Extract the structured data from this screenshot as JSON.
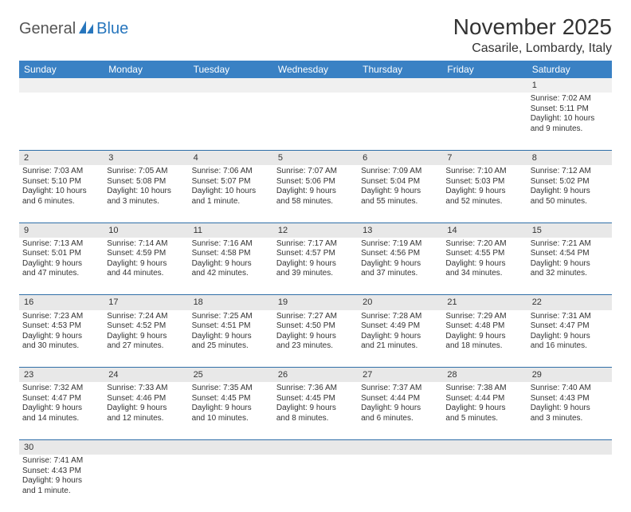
{
  "logo": {
    "text_dark": "General",
    "text_blue": "Blue"
  },
  "title": "November 2025",
  "location": "Casarile, Lombardy, Italy",
  "day_headers": [
    "Sunday",
    "Monday",
    "Tuesday",
    "Wednesday",
    "Thursday",
    "Friday",
    "Saturday"
  ],
  "colors": {
    "header_bg": "#3a81c4",
    "header_text": "#ffffff",
    "daynum_bg": "#e8e8e8",
    "cell_border": "#2f6fa8",
    "logo_blue": "#2776bd"
  },
  "weeks": [
    {
      "nums": [
        "",
        "",
        "",
        "",
        "",
        "",
        "1"
      ],
      "cells": [
        null,
        null,
        null,
        null,
        null,
        null,
        {
          "sr": "Sunrise: 7:02 AM",
          "ss": "Sunset: 5:11 PM",
          "d1": "Daylight: 10 hours",
          "d2": "and 9 minutes."
        }
      ]
    },
    {
      "nums": [
        "2",
        "3",
        "4",
        "5",
        "6",
        "7",
        "8"
      ],
      "cells": [
        {
          "sr": "Sunrise: 7:03 AM",
          "ss": "Sunset: 5:10 PM",
          "d1": "Daylight: 10 hours",
          "d2": "and 6 minutes."
        },
        {
          "sr": "Sunrise: 7:05 AM",
          "ss": "Sunset: 5:08 PM",
          "d1": "Daylight: 10 hours",
          "d2": "and 3 minutes."
        },
        {
          "sr": "Sunrise: 7:06 AM",
          "ss": "Sunset: 5:07 PM",
          "d1": "Daylight: 10 hours",
          "d2": "and 1 minute."
        },
        {
          "sr": "Sunrise: 7:07 AM",
          "ss": "Sunset: 5:06 PM",
          "d1": "Daylight: 9 hours",
          "d2": "and 58 minutes."
        },
        {
          "sr": "Sunrise: 7:09 AM",
          "ss": "Sunset: 5:04 PM",
          "d1": "Daylight: 9 hours",
          "d2": "and 55 minutes."
        },
        {
          "sr": "Sunrise: 7:10 AM",
          "ss": "Sunset: 5:03 PM",
          "d1": "Daylight: 9 hours",
          "d2": "and 52 minutes."
        },
        {
          "sr": "Sunrise: 7:12 AM",
          "ss": "Sunset: 5:02 PM",
          "d1": "Daylight: 9 hours",
          "d2": "and 50 minutes."
        }
      ]
    },
    {
      "nums": [
        "9",
        "10",
        "11",
        "12",
        "13",
        "14",
        "15"
      ],
      "cells": [
        {
          "sr": "Sunrise: 7:13 AM",
          "ss": "Sunset: 5:01 PM",
          "d1": "Daylight: 9 hours",
          "d2": "and 47 minutes."
        },
        {
          "sr": "Sunrise: 7:14 AM",
          "ss": "Sunset: 4:59 PM",
          "d1": "Daylight: 9 hours",
          "d2": "and 44 minutes."
        },
        {
          "sr": "Sunrise: 7:16 AM",
          "ss": "Sunset: 4:58 PM",
          "d1": "Daylight: 9 hours",
          "d2": "and 42 minutes."
        },
        {
          "sr": "Sunrise: 7:17 AM",
          "ss": "Sunset: 4:57 PM",
          "d1": "Daylight: 9 hours",
          "d2": "and 39 minutes."
        },
        {
          "sr": "Sunrise: 7:19 AM",
          "ss": "Sunset: 4:56 PM",
          "d1": "Daylight: 9 hours",
          "d2": "and 37 minutes."
        },
        {
          "sr": "Sunrise: 7:20 AM",
          "ss": "Sunset: 4:55 PM",
          "d1": "Daylight: 9 hours",
          "d2": "and 34 minutes."
        },
        {
          "sr": "Sunrise: 7:21 AM",
          "ss": "Sunset: 4:54 PM",
          "d1": "Daylight: 9 hours",
          "d2": "and 32 minutes."
        }
      ]
    },
    {
      "nums": [
        "16",
        "17",
        "18",
        "19",
        "20",
        "21",
        "22"
      ],
      "cells": [
        {
          "sr": "Sunrise: 7:23 AM",
          "ss": "Sunset: 4:53 PM",
          "d1": "Daylight: 9 hours",
          "d2": "and 30 minutes."
        },
        {
          "sr": "Sunrise: 7:24 AM",
          "ss": "Sunset: 4:52 PM",
          "d1": "Daylight: 9 hours",
          "d2": "and 27 minutes."
        },
        {
          "sr": "Sunrise: 7:25 AM",
          "ss": "Sunset: 4:51 PM",
          "d1": "Daylight: 9 hours",
          "d2": "and 25 minutes."
        },
        {
          "sr": "Sunrise: 7:27 AM",
          "ss": "Sunset: 4:50 PM",
          "d1": "Daylight: 9 hours",
          "d2": "and 23 minutes."
        },
        {
          "sr": "Sunrise: 7:28 AM",
          "ss": "Sunset: 4:49 PM",
          "d1": "Daylight: 9 hours",
          "d2": "and 21 minutes."
        },
        {
          "sr": "Sunrise: 7:29 AM",
          "ss": "Sunset: 4:48 PM",
          "d1": "Daylight: 9 hours",
          "d2": "and 18 minutes."
        },
        {
          "sr": "Sunrise: 7:31 AM",
          "ss": "Sunset: 4:47 PM",
          "d1": "Daylight: 9 hours",
          "d2": "and 16 minutes."
        }
      ]
    },
    {
      "nums": [
        "23",
        "24",
        "25",
        "26",
        "27",
        "28",
        "29"
      ],
      "cells": [
        {
          "sr": "Sunrise: 7:32 AM",
          "ss": "Sunset: 4:47 PM",
          "d1": "Daylight: 9 hours",
          "d2": "and 14 minutes."
        },
        {
          "sr": "Sunrise: 7:33 AM",
          "ss": "Sunset: 4:46 PM",
          "d1": "Daylight: 9 hours",
          "d2": "and 12 minutes."
        },
        {
          "sr": "Sunrise: 7:35 AM",
          "ss": "Sunset: 4:45 PM",
          "d1": "Daylight: 9 hours",
          "d2": "and 10 minutes."
        },
        {
          "sr": "Sunrise: 7:36 AM",
          "ss": "Sunset: 4:45 PM",
          "d1": "Daylight: 9 hours",
          "d2": "and 8 minutes."
        },
        {
          "sr": "Sunrise: 7:37 AM",
          "ss": "Sunset: 4:44 PM",
          "d1": "Daylight: 9 hours",
          "d2": "and 6 minutes."
        },
        {
          "sr": "Sunrise: 7:38 AM",
          "ss": "Sunset: 4:44 PM",
          "d1": "Daylight: 9 hours",
          "d2": "and 5 minutes."
        },
        {
          "sr": "Sunrise: 7:40 AM",
          "ss": "Sunset: 4:43 PM",
          "d1": "Daylight: 9 hours",
          "d2": "and 3 minutes."
        }
      ]
    },
    {
      "nums": [
        "30",
        "",
        "",
        "",
        "",
        "",
        ""
      ],
      "cells": [
        {
          "sr": "Sunrise: 7:41 AM",
          "ss": "Sunset: 4:43 PM",
          "d1": "Daylight: 9 hours",
          "d2": "and 1 minute."
        },
        null,
        null,
        null,
        null,
        null,
        null
      ]
    }
  ]
}
